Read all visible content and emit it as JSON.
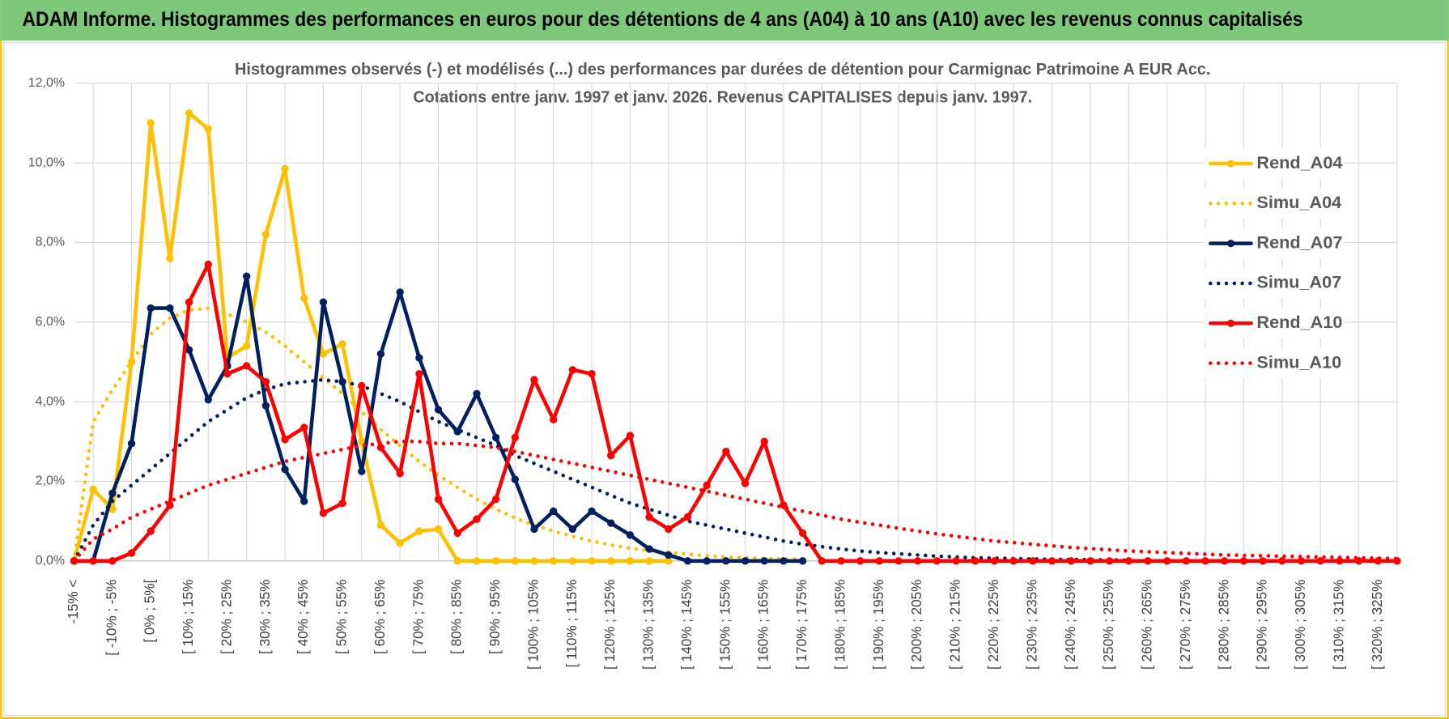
{
  "header": {
    "title": "ADAM Informe. Histogrammes des performances en euros pour des détentions de 4 ans (A04) à 10 ans (A10) avec les revenus connus capitalisés"
  },
  "chart_data": {
    "type": "line",
    "title": "Histogrammes observés (-) et modélisés (...) des performances par durées de détention pour Carmignac Patrimoine A EUR Acc.",
    "subtitle": "Cotations entre janv. 1997 et janv. 2026. Revenus CAPITALISES depuis janv. 1997.",
    "categories": [
      "-15% <",
      null,
      "[ -10% ; -5%",
      null,
      "[ 0% ; 5%[",
      null,
      "[ 10% ; 15%",
      null,
      "[ 20% ; 25%",
      null,
      "[ 30% ; 35%",
      null,
      "[ 40% ; 45%",
      null,
      "[ 50% ; 55%",
      null,
      "[ 60% ; 65%",
      null,
      "[ 70% ; 75%",
      null,
      "[ 80% ; 85%",
      null,
      "[ 90% ; 95%",
      null,
      "[ 100% ; 105%",
      null,
      "[ 110% ; 115%",
      null,
      "[ 120% ; 125%",
      null,
      "[ 130% ; 135%",
      null,
      "[ 140% ; 145%",
      null,
      "[ 150% ; 155%",
      null,
      "[ 160% ; 165%",
      null,
      "[ 170% ; 175%",
      null,
      "[ 180% ; 185%",
      null,
      "[ 190% ; 195%",
      null,
      "[ 200% ; 205%",
      null,
      "[ 210% ; 215%",
      null,
      "[ 220% ; 225%",
      null,
      "[ 230% ; 235%",
      null,
      "[ 240% ; 245%",
      null,
      "[ 250% ; 255%",
      null,
      "[ 260% ; 265%",
      null,
      "[ 270% ; 275%",
      null,
      "[ 280% ; 285%",
      null,
      "[ 290% ; 295%",
      null,
      "[ 300% ; 305%",
      null,
      "[ 310% ; 315%",
      null,
      "[ 320% ; 325%",
      null
    ],
    "series": [
      {
        "name": "Rend_A04",
        "color": "#ffc000",
        "line_style": "solid",
        "markers": true,
        "values": [
          0,
          1.8,
          1.3,
          5.0,
          11.0,
          7.6,
          11.25,
          10.85,
          5.1,
          5.4,
          8.2,
          9.85,
          6.6,
          5.2,
          5.45,
          3.0,
          0.9,
          0.45,
          0.75,
          0.8,
          0,
          0,
          0,
          0,
          0,
          0,
          0,
          0,
          0,
          0,
          0,
          0,
          null,
          null,
          null,
          null,
          null,
          null,
          null,
          null,
          null,
          null,
          null,
          null,
          null,
          null,
          null,
          null,
          null,
          null,
          null,
          null,
          null,
          null,
          null,
          null,
          null,
          null,
          null,
          null,
          null,
          null,
          null,
          null,
          null,
          null,
          null,
          null,
          null,
          null
        ]
      },
      {
        "name": "Simu_A04",
        "color": "#ffc000",
        "line_style": "dotted",
        "markers": false,
        "values": [
          0,
          3.5,
          4.3,
          5.0,
          5.7,
          6.1,
          6.3,
          6.35,
          6.2,
          6.0,
          5.75,
          5.4,
          5.0,
          4.6,
          4.2,
          3.75,
          3.3,
          2.9,
          2.5,
          2.15,
          1.85,
          1.55,
          1.3,
          1.08,
          0.9,
          0.75,
          0.62,
          0.5,
          0.4,
          0.32,
          0.26,
          0.21,
          0.17,
          0.13,
          0.1,
          0.08,
          0.06,
          0.05,
          0.04,
          null,
          null,
          null,
          null,
          null,
          null,
          null,
          null,
          null,
          null,
          null,
          null,
          null,
          null,
          null,
          null,
          null,
          null,
          null,
          null,
          null,
          null,
          null,
          null,
          null,
          null,
          null,
          null,
          null,
          null,
          null
        ]
      },
      {
        "name": "Rend_A07",
        "color": "#002060",
        "line_style": "solid",
        "markers": true,
        "values": [
          0,
          0,
          1.7,
          2.95,
          6.35,
          6.35,
          5.3,
          4.05,
          4.9,
          7.15,
          3.9,
          2.3,
          1.5,
          6.5,
          4.5,
          2.25,
          5.2,
          6.75,
          5.1,
          3.8,
          3.25,
          4.2,
          3.1,
          2.05,
          0.8,
          1.25,
          0.8,
          1.25,
          0.95,
          0.65,
          0.3,
          0.15,
          0,
          0,
          0,
          0,
          0,
          0,
          0,
          null,
          null,
          null,
          null,
          null,
          null,
          null,
          null,
          null,
          null,
          null,
          null,
          null,
          null,
          null,
          null,
          null,
          null,
          null,
          null,
          null,
          null,
          null,
          null,
          null,
          null,
          null,
          null,
          null,
          null,
          null
        ]
      },
      {
        "name": "Simu_A07",
        "color": "#002060",
        "line_style": "dotted",
        "markers": false,
        "values": [
          0,
          0.9,
          1.5,
          1.9,
          2.3,
          2.7,
          3.1,
          3.5,
          3.8,
          4.1,
          4.3,
          4.45,
          4.5,
          4.55,
          4.5,
          4.4,
          4.2,
          4.0,
          3.75,
          3.5,
          3.3,
          3.1,
          2.9,
          2.65,
          2.45,
          2.25,
          2.05,
          1.85,
          1.65,
          1.45,
          1.3,
          1.15,
          1.0,
          0.9,
          0.8,
          0.7,
          0.6,
          0.5,
          0.42,
          0.36,
          0.3,
          0.25,
          0.21,
          0.18,
          0.15,
          0.12,
          0.1,
          0.08,
          0.07,
          0.06,
          0.05,
          0.04,
          0.04,
          0.03,
          0.03,
          0.02,
          null,
          null,
          null,
          null,
          null,
          null,
          null,
          null,
          null,
          null,
          null,
          null,
          null,
          null
        ]
      },
      {
        "name": "Rend_A10",
        "color": "#ff0000",
        "line_style": "solid",
        "markers": true,
        "values": [
          0,
          0,
          0,
          0.2,
          0.75,
          1.4,
          6.5,
          7.45,
          4.7,
          4.9,
          4.5,
          3.05,
          3.35,
          1.2,
          1.45,
          4.4,
          2.85,
          2.2,
          4.7,
          1.55,
          0.7,
          1.05,
          1.55,
          3.1,
          4.55,
          3.55,
          4.8,
          4.7,
          2.65,
          3.15,
          1.1,
          0.8,
          1.1,
          1.9,
          2.75,
          1.95,
          3.0,
          1.4,
          0.7,
          0,
          0,
          0,
          0,
          0,
          0,
          0,
          0,
          0,
          0,
          0,
          0,
          0,
          0,
          0,
          0,
          0,
          0,
          0,
          0,
          0,
          0,
          0,
          0,
          0,
          0,
          0,
          0,
          0,
          0,
          0
        ]
      },
      {
        "name": "Simu_A10",
        "color": "#ff0000",
        "line_style": "dotted",
        "markers": false,
        "values": [
          0,
          0.55,
          0.8,
          1.1,
          1.3,
          1.5,
          1.7,
          1.9,
          2.05,
          2.2,
          2.35,
          2.5,
          2.6,
          2.7,
          2.8,
          2.9,
          2.95,
          3.0,
          3.0,
          2.95,
          2.95,
          2.9,
          2.85,
          2.75,
          2.65,
          2.55,
          2.45,
          2.35,
          2.25,
          2.15,
          2.05,
          1.95,
          1.85,
          1.75,
          1.65,
          1.55,
          1.45,
          1.35,
          1.25,
          1.15,
          1.05,
          0.97,
          0.9,
          0.82,
          0.75,
          0.68,
          0.62,
          0.56,
          0.5,
          0.46,
          0.42,
          0.38,
          0.34,
          0.31,
          0.28,
          0.25,
          0.23,
          0.21,
          0.19,
          0.17,
          0.15,
          0.14,
          0.13,
          0.12,
          0.11,
          0.1,
          0.09,
          0.08,
          0.07,
          0.06
        ]
      }
    ],
    "ylim": [
      0,
      12
    ],
    "yticks": [
      {
        "value": 0,
        "label": "0,0%"
      },
      {
        "value": 2,
        "label": "2,0%"
      },
      {
        "value": 4,
        "label": "4,0%"
      },
      {
        "value": 6,
        "label": "6,0%"
      },
      {
        "value": 8,
        "label": "8,0%"
      },
      {
        "value": 10,
        "label": "10,0%"
      },
      {
        "value": 12,
        "label": "12,0%"
      }
    ],
    "grid": true,
    "legend": "right"
  }
}
